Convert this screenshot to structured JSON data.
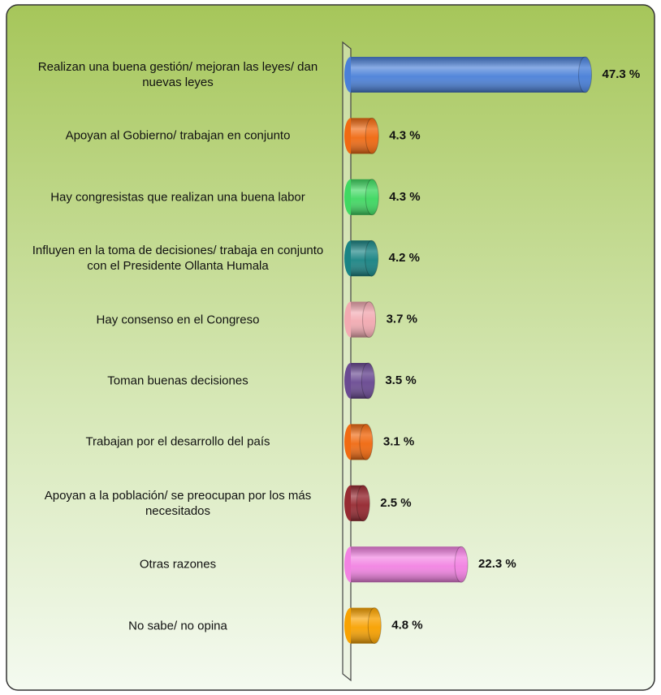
{
  "chart_data": {
    "type": "bar",
    "categories": [
      "Realizan una buena gestión/ mejoran las leyes/ dan nuevas leyes",
      "Apoyan al Gobierno/ trabajan en conjunto",
      "Hay congresistas que realizan una buena labor",
      "Influyen en la toma de decisiones/ trabaja en conjunto con el Presidente Ollanta Humala",
      "Hay consenso en el Congreso",
      "Toman buenas decisiones",
      "Trabajan por el desarrollo del país",
      "Apoyan a la población/ se preocupan por los más necesitados",
      "Otras razones",
      "No sabe/ no opina"
    ],
    "values": [
      47.3,
      4.3,
      4.3,
      4.2,
      3.7,
      3.5,
      3.1,
      2.5,
      22.3,
      4.8
    ],
    "value_labels": [
      "47.3 %",
      "4.3 %",
      "4.3 %",
      "4.2 %",
      "3.7 %",
      "3.5 %",
      "3.1 %",
      "2.5 %",
      "22.3 %",
      "4.8 %"
    ],
    "colors": [
      "#4a80d8",
      "#f06a12",
      "#40d862",
      "#1a8484",
      "#f2aab2",
      "#6a4a92",
      "#f06a12",
      "#962a32",
      "#f282e2",
      "#f8a202"
    ]
  }
}
